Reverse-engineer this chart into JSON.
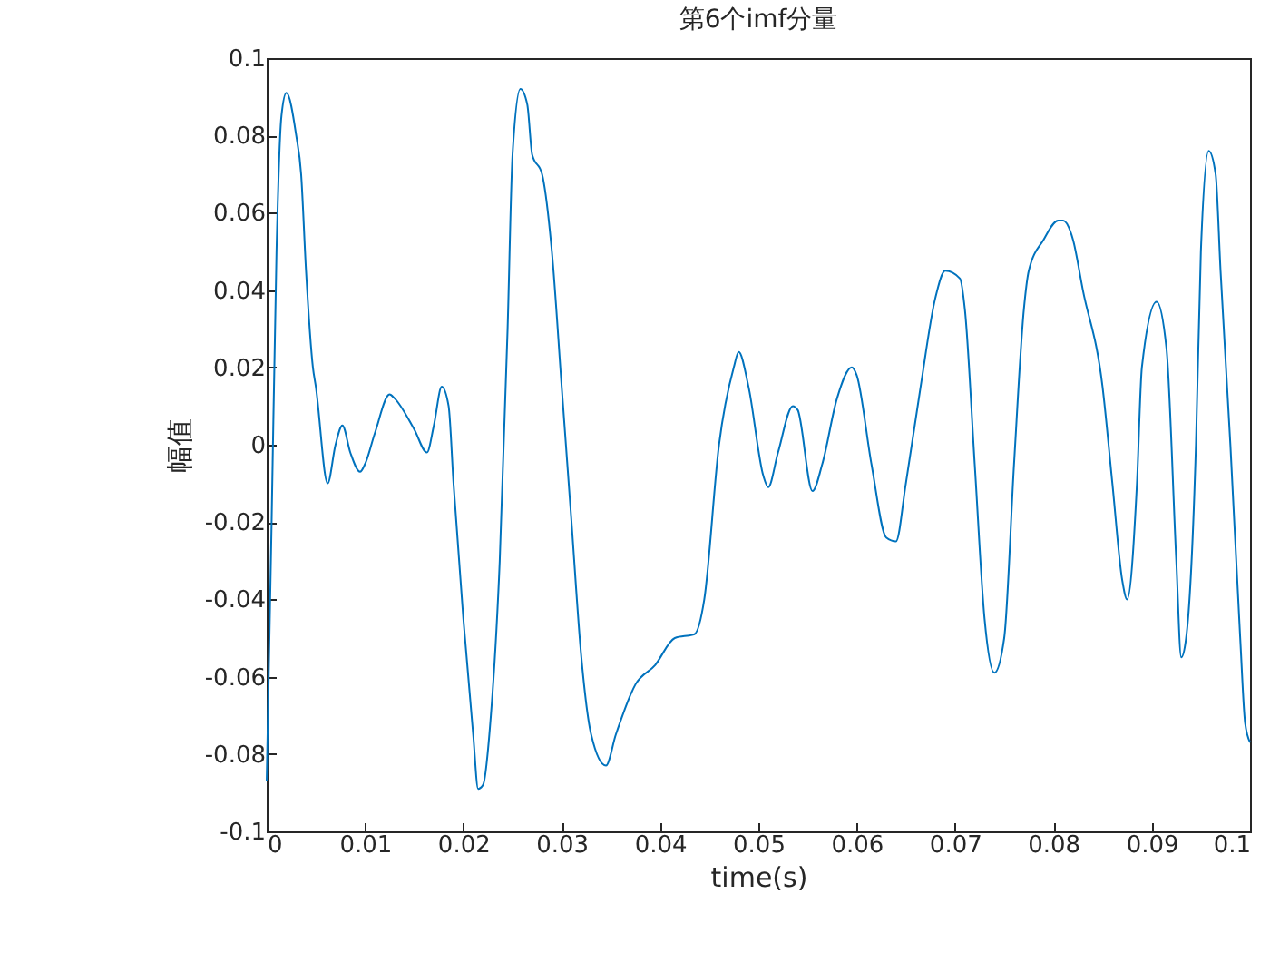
{
  "chart_data": {
    "type": "line",
    "title": "第6个imf分量",
    "xlabel": "time(s)",
    "ylabel": "幅值",
    "xlim": [
      0,
      0.1
    ],
    "ylim": [
      -0.1,
      0.1
    ],
    "xticks": [
      0,
      0.01,
      0.02,
      0.03,
      0.04,
      0.05,
      0.06,
      0.07,
      0.08,
      0.09,
      0.1
    ],
    "yticks": [
      -0.1,
      -0.08,
      -0.06,
      -0.04,
      -0.02,
      0,
      0.02,
      0.04,
      0.06,
      0.08,
      0.1
    ],
    "grid": false,
    "legend": false,
    "x": [
      0,
      0.0005,
      0.001,
      0.0015,
      0.002,
      0.003,
      0.0035,
      0.004,
      0.0047,
      0.005,
      0.0062,
      0.007,
      0.0077,
      0.0085,
      0.0095,
      0.01,
      0.011,
      0.0125,
      0.013,
      0.015,
      0.0163,
      0.017,
      0.0178,
      0.0185,
      0.019,
      0.02,
      0.021,
      0.0215,
      0.022,
      0.0228,
      0.0237,
      0.0245,
      0.025,
      0.0258,
      0.0265,
      0.027,
      0.028,
      0.029,
      0.03,
      0.031,
      0.032,
      0.033,
      0.0345,
      0.0355,
      0.0375,
      0.0395,
      0.0415,
      0.0435,
      0.0445,
      0.046,
      0.0475,
      0.048,
      0.049,
      0.0505,
      0.051,
      0.052,
      0.0535,
      0.054,
      0.0555,
      0.0565,
      0.058,
      0.0595,
      0.06,
      0.0615,
      0.063,
      0.064,
      0.065,
      0.0665,
      0.068,
      0.069,
      0.0705,
      0.071,
      0.072,
      0.073,
      0.074,
      0.075,
      0.076,
      0.077,
      0.0775,
      0.079,
      0.0805,
      0.081,
      0.082,
      0.083,
      0.085,
      0.086,
      0.087,
      0.0875,
      0.0885,
      0.089,
      0.0905,
      0.0915,
      0.0925,
      0.093,
      0.0935,
      0.0945,
      0.095,
      0.0958,
      0.0965,
      0.097,
      0.098,
      0.099,
      0.0995,
      0.1
    ],
    "series": [
      {
        "color": "#0072bd",
        "values": [
          -0.087,
          -0.02,
          0.05,
          0.085,
          0.091,
          0.08,
          0.07,
          0.045,
          0.02,
          0.015,
          -0.01,
          0.0,
          0.005,
          -0.002,
          -0.007,
          -0.005,
          0.003,
          0.013,
          0.012,
          0.004,
          -0.002,
          0.005,
          0.015,
          0.01,
          -0.01,
          -0.045,
          -0.075,
          -0.089,
          -0.088,
          -0.07,
          -0.03,
          0.03,
          0.075,
          0.092,
          0.088,
          0.075,
          0.07,
          0.05,
          0.015,
          -0.02,
          -0.055,
          -0.075,
          -0.083,
          -0.075,
          -0.062,
          -0.057,
          -0.05,
          -0.049,
          -0.04,
          0.0,
          0.02,
          0.024,
          0.015,
          -0.008,
          -0.011,
          -0.002,
          0.01,
          0.009,
          -0.012,
          -0.005,
          0.012,
          0.02,
          0.018,
          -0.005,
          -0.024,
          -0.025,
          -0.01,
          0.015,
          0.038,
          0.045,
          0.043,
          0.035,
          -0.005,
          -0.045,
          -0.059,
          -0.05,
          -0.005,
          0.035,
          0.045,
          0.053,
          0.058,
          0.058,
          0.053,
          0.04,
          0.015,
          -0.01,
          -0.035,
          -0.04,
          -0.01,
          0.02,
          0.037,
          0.025,
          -0.03,
          -0.055,
          -0.05,
          0.0,
          0.05,
          0.076,
          0.07,
          0.045,
          0.0,
          -0.05,
          -0.072,
          -0.077
        ]
      }
    ]
  }
}
